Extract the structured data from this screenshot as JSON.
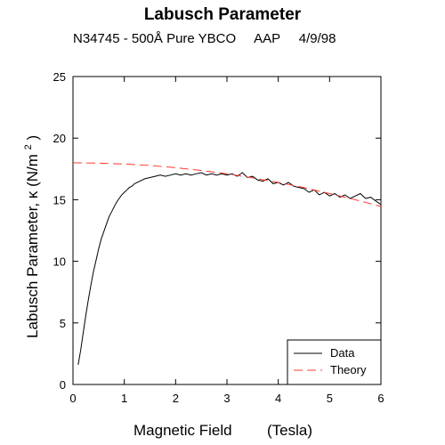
{
  "chart_data": {
    "type": "line",
    "title": "Labusch Parameter",
    "subtitle": "N34745 - 500Å Pure YBCO     AAP     4/9/98",
    "xlabel": "Magnetic Field",
    "xlabel_unit": "(Tesla)",
    "ylabel": "Labusch Parameter, κ",
    "ylabel_unit_prefix": "(N/m",
    "ylabel_unit_sup": "2",
    "ylabel_unit_suffix": ")",
    "xlim": [
      0,
      6
    ],
    "ylim": [
      0,
      25
    ],
    "xticks": [
      0,
      1,
      2,
      3,
      4,
      5,
      6
    ],
    "yticks": [
      0,
      5,
      10,
      15,
      20,
      25
    ],
    "legend_position": "bottom-right",
    "series": [
      {
        "name": "Data",
        "color": "#000000",
        "style": "solid",
        "x": [
          0.1,
          0.15,
          0.2,
          0.25,
          0.3,
          0.35,
          0.4,
          0.45,
          0.5,
          0.55,
          0.6,
          0.65,
          0.7,
          0.75,
          0.8,
          0.85,
          0.9,
          0.95,
          1.0,
          1.05,
          1.1,
          1.15,
          1.2,
          1.3,
          1.4,
          1.5,
          1.6,
          1.7,
          1.8,
          1.9,
          2.0,
          2.1,
          2.2,
          2.3,
          2.4,
          2.5,
          2.6,
          2.7,
          2.8,
          2.9,
          3.0,
          3.1,
          3.2,
          3.3,
          3.4,
          3.5,
          3.6,
          3.7,
          3.8,
          3.9,
          4.0,
          4.1,
          4.2,
          4.3,
          4.4,
          4.5,
          4.6,
          4.7,
          4.8,
          4.9,
          5.0,
          5.1,
          5.2,
          5.3,
          5.4,
          5.5,
          5.6,
          5.7,
          5.8,
          5.9,
          6.0
        ],
        "values": [
          1.6,
          2.8,
          4.2,
          5.6,
          6.9,
          8.1,
          9.2,
          10.1,
          11.0,
          11.8,
          12.4,
          13.0,
          13.6,
          14.0,
          14.4,
          14.8,
          15.1,
          15.4,
          15.6,
          15.8,
          16.0,
          16.1,
          16.3,
          16.5,
          16.7,
          16.8,
          16.9,
          17.0,
          16.9,
          17.0,
          17.1,
          17.0,
          17.1,
          17.0,
          17.1,
          17.2,
          17.0,
          17.1,
          17.0,
          17.1,
          17.0,
          17.1,
          16.9,
          17.2,
          16.8,
          16.9,
          16.6,
          16.5,
          16.7,
          16.3,
          16.4,
          16.2,
          16.4,
          16.1,
          16.0,
          15.9,
          15.6,
          15.8,
          15.4,
          15.6,
          15.3,
          15.5,
          15.2,
          15.4,
          15.1,
          15.3,
          15.5,
          15.1,
          15.2,
          14.9,
          14.6
        ]
      },
      {
        "name": "Theory",
        "color": "#ff3b30",
        "style": "dashed",
        "x": [
          0.0,
          0.5,
          1.0,
          1.5,
          2.0,
          2.5,
          3.0,
          3.5,
          4.0,
          4.5,
          5.0,
          5.5,
          6.0
        ],
        "values": [
          18.0,
          17.97,
          17.9,
          17.78,
          17.6,
          17.38,
          17.1,
          16.78,
          16.4,
          15.98,
          15.5,
          15.0,
          14.45
        ]
      }
    ]
  }
}
